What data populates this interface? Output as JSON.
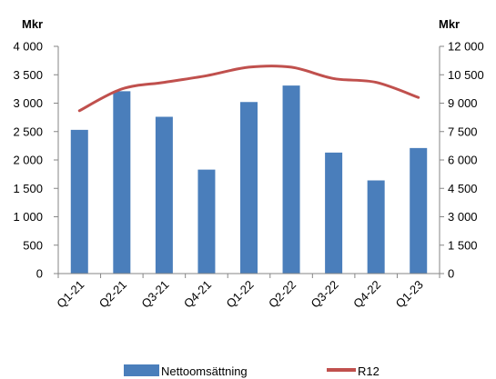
{
  "chart_data": {
    "type": "bar",
    "categories": [
      "Q1-21",
      "Q2-21",
      "Q3-21",
      "Q4-21",
      "Q1-22",
      "Q2-22",
      "Q3-22",
      "Q4-22",
      "Q1-23"
    ],
    "series": [
      {
        "name": "Nettoomsättning",
        "type": "bar",
        "axis": "left",
        "color": "#4a7ebb",
        "values": [
          2530,
          3210,
          2760,
          1830,
          3020,
          3310,
          2130,
          1640,
          2210
        ]
      },
      {
        "name": "R12",
        "type": "line",
        "axis": "right",
        "color": "#c0504d",
        "values": [
          8600,
          9750,
          10100,
          10450,
          10900,
          10900,
          10300,
          10100,
          9300
        ]
      }
    ],
    "y_left": {
      "unit_label": "Mkr",
      "lim": [
        0,
        4000
      ],
      "ticks": [
        "0",
        "500",
        "1 000",
        "1 500",
        "2 000",
        "2 500",
        "3 000",
        "3 500",
        "4 000"
      ]
    },
    "y_right": {
      "unit_label": "Mkr",
      "lim": [
        0,
        12000
      ],
      "ticks": [
        "0",
        "1 500",
        "3 000",
        "4 500",
        "6 000",
        "7 500",
        "9 000",
        "10 500",
        "12 000"
      ]
    },
    "grid": false,
    "legend_position": "bottom"
  }
}
